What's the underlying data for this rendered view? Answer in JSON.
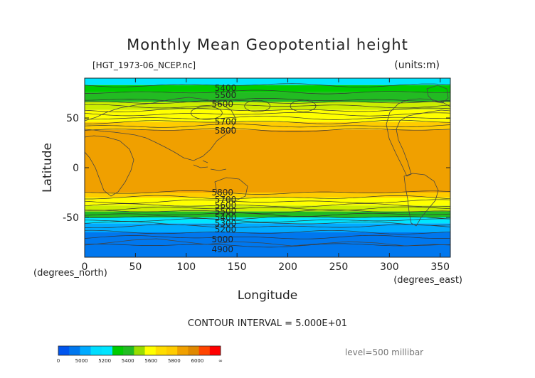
{
  "chart_data": {
    "type": "heatmap",
    "title": "Monthly Mean Geopotential height",
    "file_label": "[HGT_1973-06_NCEP.nc]",
    "units_label": "(units:m)",
    "xlabel": "Longitude",
    "ylabel": "Latitude",
    "x_unit_label": "(degrees_east)",
    "y_unit_label": "(degrees_north)",
    "xlim": [
      0,
      360
    ],
    "ylim": [
      -90,
      90
    ],
    "x_ticks": [
      0,
      50,
      100,
      150,
      200,
      250,
      300,
      350
    ],
    "y_ticks": [
      50,
      0,
      -50
    ],
    "contour_interval_text": "CONTOUR INTERVAL = 5.000E+01",
    "level_text": "level=500 millibar",
    "color_bands": [
      {
        "lat_from": 90,
        "lat_to": 83,
        "color": "#00e5ff"
      },
      {
        "lat_from": 83,
        "lat_to": 76,
        "color": "#00cc00"
      },
      {
        "lat_from": 76,
        "lat_to": 66,
        "color": "#22bb22"
      },
      {
        "lat_from": 66,
        "lat_to": 58,
        "color": "#ccee00"
      },
      {
        "lat_from": 58,
        "lat_to": 46,
        "color": "#ffff00"
      },
      {
        "lat_from": 46,
        "lat_to": 38,
        "color": "#ffcc00"
      },
      {
        "lat_from": 38,
        "lat_to": -25,
        "color": "#f0a000"
      },
      {
        "lat_from": -25,
        "lat_to": -30,
        "color": "#ffcc00"
      },
      {
        "lat_from": -30,
        "lat_to": -38,
        "color": "#ffff00"
      },
      {
        "lat_from": -38,
        "lat_to": -44,
        "color": "#ccee00"
      },
      {
        "lat_from": -44,
        "lat_to": -50,
        "color": "#22bb22"
      },
      {
        "lat_from": -50,
        "lat_to": -56,
        "color": "#00e5ff"
      },
      {
        "lat_from": -56,
        "lat_to": -65,
        "color": "#00aaff"
      },
      {
        "lat_from": -65,
        "lat_to": -90,
        "color": "#0077ee"
      }
    ],
    "contour_labels": [
      {
        "lon": 128,
        "lat": 80,
        "text": "5400"
      },
      {
        "lon": 128,
        "lat": 73,
        "text": "5500"
      },
      {
        "lon": 125,
        "lat": 64,
        "text": "5600"
      },
      {
        "lon": 128,
        "lat": 46,
        "text": "5700"
      },
      {
        "lon": 128,
        "lat": 37,
        "text": "5800"
      },
      {
        "lon": 125,
        "lat": -25,
        "text": "5800"
      },
      {
        "lon": 128,
        "lat": -32,
        "text": "5700"
      },
      {
        "lon": 128,
        "lat": -38,
        "text": "5600"
      },
      {
        "lon": 128,
        "lat": -44,
        "text": "5500"
      },
      {
        "lon": 128,
        "lat": -50,
        "text": "5400"
      },
      {
        "lon": 128,
        "lat": -56,
        "text": "5300"
      },
      {
        "lon": 128,
        "lat": -62,
        "text": "5200"
      },
      {
        "lon": 125,
        "lat": -72,
        "text": "5000"
      },
      {
        "lon": 125,
        "lat": -82,
        "text": "4900"
      }
    ],
    "colorbar": {
      "colors": [
        "#0055ee",
        "#0077ee",
        "#00aaff",
        "#00ddff",
        "#00e5ff",
        "#00cc00",
        "#22bb22",
        "#99dd00",
        "#ffff00",
        "#ffdd00",
        "#ffcc00",
        "#f0a000",
        "#e08800",
        "#ff4400",
        "#ff0000"
      ],
      "tick_labels": [
        "0",
        "5000",
        "5200",
        "5400",
        "5600",
        "5800",
        "6000",
        "∞"
      ]
    }
  }
}
